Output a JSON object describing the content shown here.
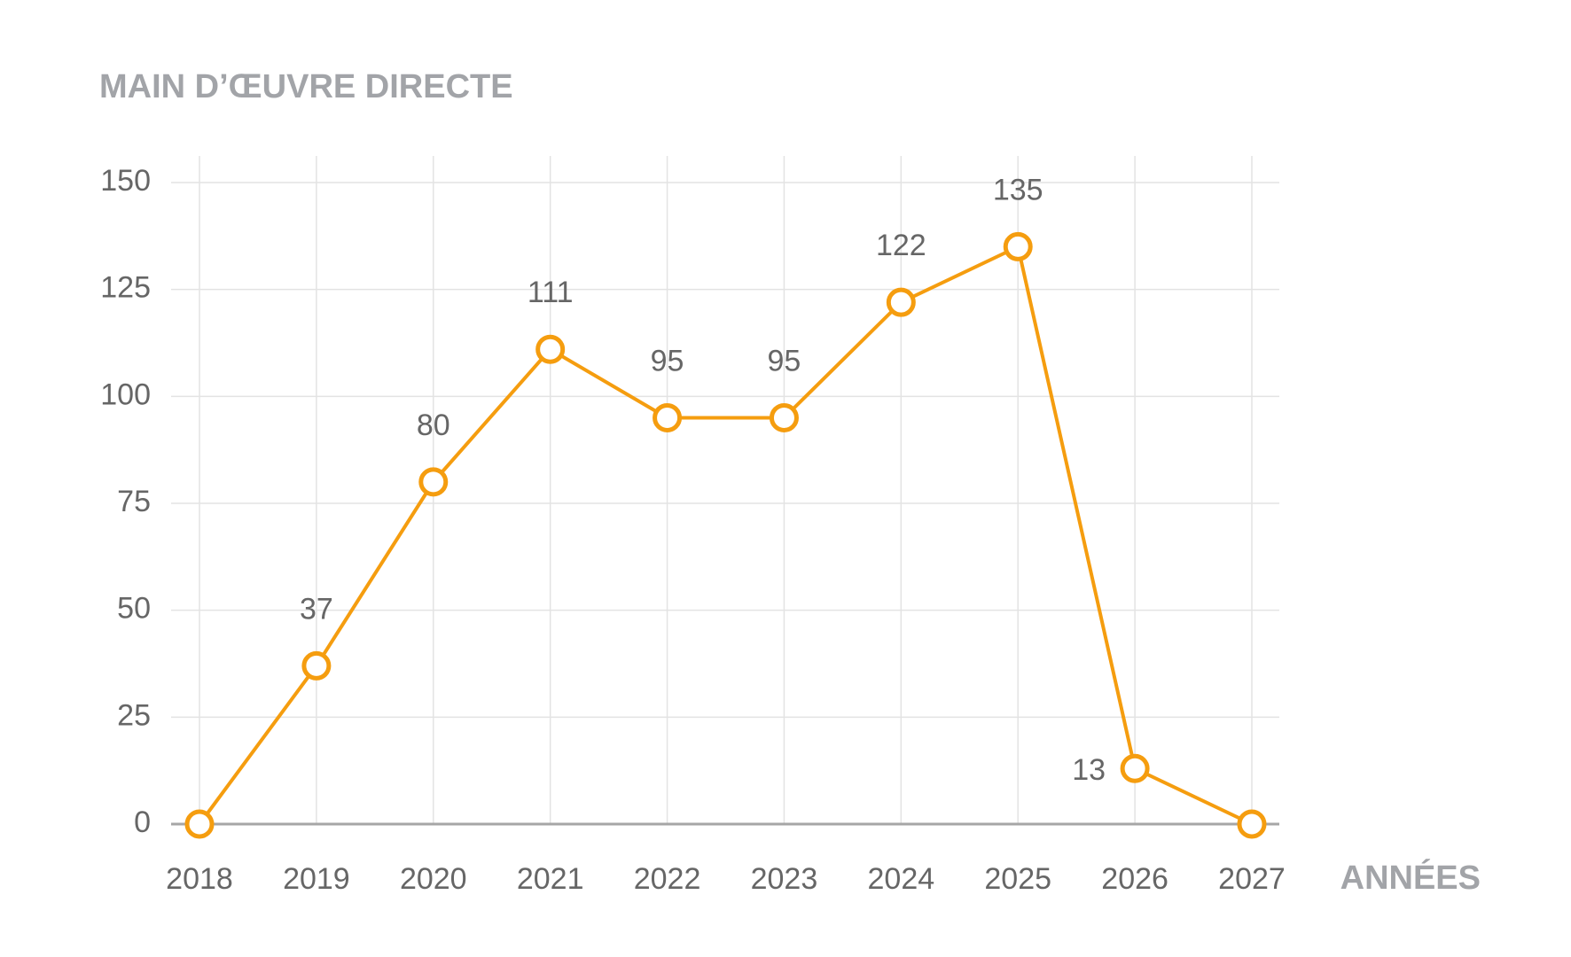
{
  "chart_data": {
    "type": "line",
    "title": "MAIN D’ŒUVRE DIRECTE",
    "x_label": "ANNÉES",
    "categories": [
      "2018",
      "2019",
      "2020",
      "2021",
      "2022",
      "2023",
      "2024",
      "2025",
      "2026",
      "2027"
    ],
    "series": [
      {
        "name": "Main d’œuvre directe",
        "color": "#f59d0f",
        "values": [
          0,
          37,
          80,
          111,
          95,
          95,
          122,
          135,
          13,
          0
        ]
      }
    ],
    "ylim": [
      0,
      150
    ],
    "yticks": [
      0,
      25,
      50,
      75,
      100,
      125,
      150
    ],
    "grid": true
  }
}
